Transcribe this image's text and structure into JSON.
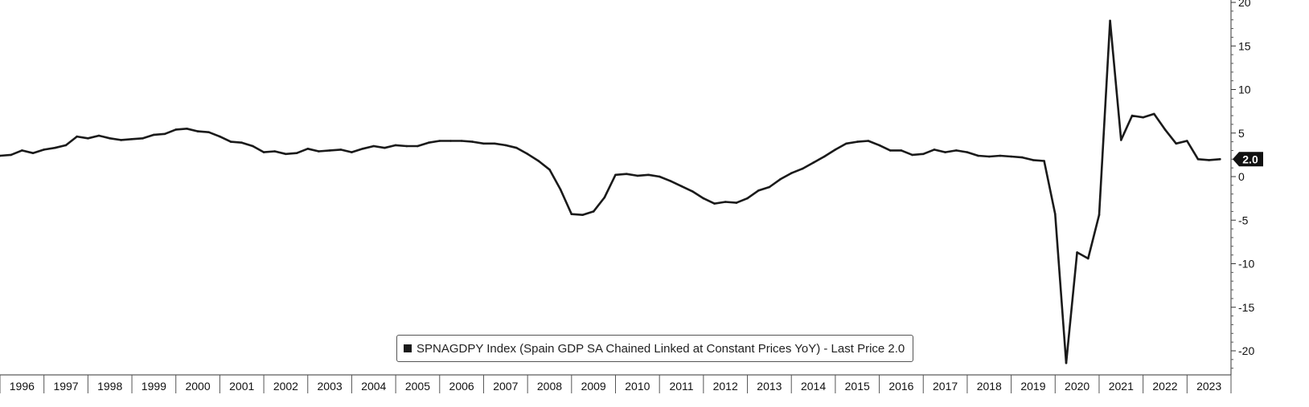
{
  "chart_data": {
    "type": "line",
    "title": "",
    "xlabel": "",
    "ylabel": "",
    "ylim": [
      -22,
      20
    ],
    "xlim": [
      1996.0,
      2024.0
    ],
    "grid": false,
    "legend_position": "bottom-center",
    "yticks": [
      20,
      15,
      10,
      5,
      0,
      -5,
      -10,
      -15,
      -20
    ],
    "ytick_labels": [
      "20",
      "15",
      "10",
      "5",
      "0",
      "-5",
      "-10",
      "-15",
      "-20"
    ],
    "xtick_labels": [
      "1996",
      "1997",
      "1998",
      "1999",
      "2000",
      "2001",
      "2002",
      "2003",
      "2004",
      "2005",
      "2006",
      "2007",
      "2008",
      "2009",
      "2010",
      "2011",
      "2012",
      "2013",
      "2014",
      "2015",
      "2016",
      "2017",
      "2018",
      "2019",
      "2020",
      "2021",
      "2022",
      "2023"
    ],
    "last_price_label": "2.0",
    "series": [
      {
        "name": "SPNAGDPY Index (Spain GDP SA Chained Linked at Constant Prices YoY) - Last Price 2.0",
        "color": "#1a1a1a",
        "x": [
          1996.0,
          1996.25,
          1996.5,
          1996.75,
          1997.0,
          1997.25,
          1997.5,
          1997.75,
          1998.0,
          1998.25,
          1998.5,
          1998.75,
          1999.0,
          1999.25,
          1999.5,
          1999.75,
          2000.0,
          2000.25,
          2000.5,
          2000.75,
          2001.0,
          2001.25,
          2001.5,
          2001.75,
          2002.0,
          2002.25,
          2002.5,
          2002.75,
          2003.0,
          2003.25,
          2003.5,
          2003.75,
          2004.0,
          2004.25,
          2004.5,
          2004.75,
          2005.0,
          2005.25,
          2005.5,
          2005.75,
          2006.0,
          2006.25,
          2006.5,
          2006.75,
          2007.0,
          2007.25,
          2007.5,
          2007.75,
          2008.0,
          2008.25,
          2008.5,
          2008.75,
          2009.0,
          2009.25,
          2009.5,
          2009.75,
          2010.0,
          2010.25,
          2010.5,
          2010.75,
          2011.0,
          2011.25,
          2011.5,
          2011.75,
          2012.0,
          2012.25,
          2012.5,
          2012.75,
          2013.0,
          2013.25,
          2013.5,
          2013.75,
          2014.0,
          2014.25,
          2014.5,
          2014.75,
          2015.0,
          2015.25,
          2015.5,
          2015.75,
          2016.0,
          2016.25,
          2016.5,
          2016.75,
          2017.0,
          2017.25,
          2017.5,
          2017.75,
          2018.0,
          2018.25,
          2018.5,
          2018.75,
          2019.0,
          2019.25,
          2019.5,
          2019.75,
          2020.0,
          2020.25,
          2020.5,
          2020.75,
          2021.0,
          2021.25,
          2021.5,
          2021.75,
          2022.0,
          2022.25,
          2022.5,
          2022.75,
          2023.0,
          2023.25,
          2023.5,
          2023.75
        ],
        "values": [
          2.4,
          2.5,
          3.0,
          2.7,
          3.1,
          3.3,
          3.6,
          4.6,
          4.4,
          4.7,
          4.4,
          4.2,
          4.3,
          4.4,
          4.8,
          4.9,
          5.4,
          5.5,
          5.2,
          5.1,
          4.6,
          4.0,
          3.9,
          3.5,
          2.8,
          2.9,
          2.6,
          2.7,
          3.2,
          2.9,
          3.0,
          3.1,
          2.8,
          3.2,
          3.5,
          3.3,
          3.6,
          3.5,
          3.5,
          3.9,
          4.1,
          4.1,
          4.1,
          4.0,
          3.8,
          3.8,
          3.6,
          3.3,
          2.6,
          1.8,
          0.8,
          -1.5,
          -4.3,
          -4.4,
          -4.0,
          -2.4,
          0.2,
          0.3,
          0.1,
          0.2,
          0.0,
          -0.5,
          -1.1,
          -1.7,
          -2.5,
          -3.1,
          -2.9,
          -3.0,
          -2.5,
          -1.6,
          -1.2,
          -0.3,
          0.4,
          0.9,
          1.6,
          2.3,
          3.1,
          3.8,
          4.0,
          4.1,
          3.6,
          3.0,
          3.0,
          2.5,
          2.6,
          3.1,
          2.8,
          3.0,
          2.8,
          2.4,
          2.3,
          2.4,
          2.3,
          2.2,
          1.9,
          1.8,
          -4.3,
          -21.4,
          -8.7,
          -9.4,
          -4.4,
          17.9,
          4.2,
          7.0,
          6.8,
          7.2,
          5.4,
          3.8,
          4.1,
          2.0,
          1.9,
          2.0
        ]
      }
    ]
  }
}
